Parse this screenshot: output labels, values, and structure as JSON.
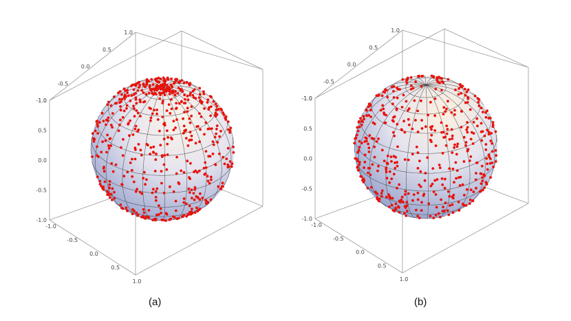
{
  "panels": [
    {
      "caption": "(a)",
      "chart_data": {
        "type": "scatter",
        "subtype": "3d-points-on-unit-sphere",
        "distribution": "clustered-near-poles",
        "point_count": 1200,
        "point_color": "#e8120c",
        "sphere_shading": [
          "#f6e2d6",
          "#dfe3f0",
          "#9aa6cf"
        ],
        "axes": {
          "x_ticks": [
            "-1.0",
            "-0.5",
            "0.0",
            "0.5",
            "1.0"
          ],
          "y_ticks": [
            "-1.0",
            "-0.5",
            "0.0",
            "0.5",
            "1.0"
          ],
          "z_ticks": [
            "-1.0",
            "-0.5",
            "0.0",
            "0.5",
            "1.0"
          ],
          "xlim": [
            -1,
            1
          ],
          "ylim": [
            -1,
            1
          ],
          "zlim": [
            -1,
            1
          ]
        },
        "latitude_lines": 11,
        "longitude_lines": 20
      }
    },
    {
      "caption": "(b)",
      "chart_data": {
        "type": "scatter",
        "subtype": "3d-points-on-unit-sphere",
        "distribution": "uniform",
        "point_count": 900,
        "point_color": "#e8120c",
        "sphere_shading": [
          "#f9e6d2",
          "#dfe3f0",
          "#9aa6cf"
        ],
        "axes": {
          "x_ticks": [
            "-1.0",
            "-0.5",
            "0.0",
            "0.5",
            "1.0"
          ],
          "y_ticks": [
            "-1.0",
            "-0.5",
            "0.0",
            "0.5",
            "1.0"
          ],
          "z_ticks": [
            "-1.0",
            "-0.5",
            "0.0",
            "0.5",
            "1.0"
          ],
          "xlim": [
            -1,
            1
          ],
          "ylim": [
            -1,
            1
          ],
          "zlim": [
            -1,
            1
          ]
        },
        "latitude_lines": 11,
        "longitude_lines": 20
      }
    }
  ]
}
